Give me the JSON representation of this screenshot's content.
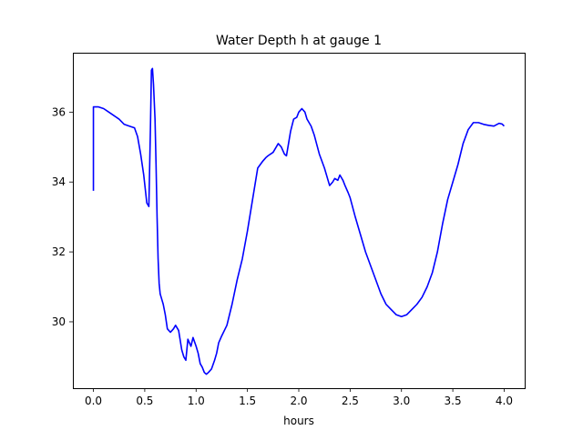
{
  "chart_data": {
    "type": "line",
    "title": "Water Depth h at gauge 1",
    "xlabel": "hours",
    "ylabel": "",
    "xlim": [
      -0.2,
      4.2
    ],
    "ylim": [
      28.1,
      37.7
    ],
    "xticks": [
      0.0,
      0.5,
      1.0,
      1.5,
      2.0,
      2.5,
      3.0,
      3.5,
      4.0
    ],
    "xtick_labels": [
      "0.0",
      "0.5",
      "1.0",
      "1.5",
      "2.0",
      "2.5",
      "3.0",
      "3.5",
      "4.0"
    ],
    "yticks": [
      30,
      32,
      34,
      36
    ],
    "ytick_labels": [
      "30",
      "32",
      "34",
      "36"
    ],
    "grid": false,
    "series": [
      {
        "color": "#0000ff",
        "x": [
          0.0,
          0.0,
          0.01,
          0.05,
          0.1,
          0.15,
          0.2,
          0.25,
          0.3,
          0.35,
          0.4,
          0.43,
          0.46,
          0.49,
          0.52,
          0.54,
          0.555,
          0.565,
          0.575,
          0.585,
          0.6,
          0.61,
          0.62,
          0.63,
          0.64,
          0.65,
          0.66,
          0.68,
          0.7,
          0.72,
          0.75,
          0.78,
          0.8,
          0.83,
          0.86,
          0.88,
          0.9,
          0.92,
          0.95,
          0.97,
          1.0,
          1.02,
          1.04,
          1.06,
          1.08,
          1.1,
          1.12,
          1.15,
          1.18,
          1.2,
          1.22,
          1.25,
          1.3,
          1.35,
          1.4,
          1.45,
          1.5,
          1.55,
          1.6,
          1.65,
          1.68,
          1.7,
          1.75,
          1.8,
          1.83,
          1.86,
          1.88,
          1.9,
          1.92,
          1.95,
          1.98,
          2.0,
          2.03,
          2.06,
          2.08,
          2.1,
          2.12,
          2.15,
          2.2,
          2.25,
          2.3,
          2.33,
          2.35,
          2.38,
          2.4,
          2.43,
          2.45,
          2.48,
          2.5,
          2.55,
          2.6,
          2.65,
          2.7,
          2.75,
          2.8,
          2.85,
          2.9,
          2.95,
          3.0,
          3.05,
          3.1,
          3.15,
          3.2,
          3.25,
          3.3,
          3.35,
          3.4,
          3.45,
          3.5,
          3.55,
          3.6,
          3.65,
          3.7,
          3.75,
          3.8,
          3.85,
          3.9,
          3.95,
          3.98,
          4.0
        ],
        "y": [
          33.75,
          36.15,
          36.15,
          36.15,
          36.1,
          36.0,
          35.9,
          35.8,
          35.65,
          35.6,
          35.55,
          35.3,
          34.8,
          34.2,
          33.4,
          33.3,
          35.5,
          37.2,
          37.25,
          36.8,
          35.8,
          34.5,
          33.0,
          31.8,
          31.1,
          30.8,
          30.7,
          30.5,
          30.2,
          29.8,
          29.7,
          29.8,
          29.9,
          29.75,
          29.2,
          29.0,
          28.9,
          29.5,
          29.3,
          29.55,
          29.3,
          29.1,
          28.8,
          28.7,
          28.55,
          28.5,
          28.55,
          28.65,
          28.9,
          29.1,
          29.4,
          29.6,
          29.9,
          30.5,
          31.2,
          31.8,
          32.6,
          33.5,
          34.4,
          34.6,
          34.7,
          34.75,
          34.85,
          35.1,
          35.0,
          34.8,
          34.75,
          35.1,
          35.45,
          35.8,
          35.85,
          36.0,
          36.1,
          36.0,
          35.8,
          35.7,
          35.6,
          35.35,
          34.8,
          34.4,
          33.9,
          34.0,
          34.1,
          34.05,
          34.2,
          34.05,
          33.9,
          33.7,
          33.55,
          33.0,
          32.5,
          32.0,
          31.6,
          31.2,
          30.8,
          30.5,
          30.35,
          30.2,
          30.15,
          30.2,
          30.35,
          30.5,
          30.7,
          31.0,
          31.4,
          32.0,
          32.8,
          33.5,
          34.0,
          34.5,
          35.1,
          35.5,
          35.7,
          35.7,
          35.65,
          35.62,
          35.6,
          35.68,
          35.66,
          35.6
        ]
      }
    ]
  }
}
